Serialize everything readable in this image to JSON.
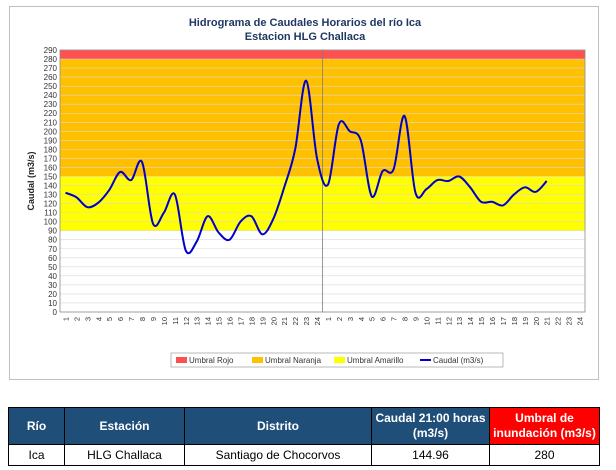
{
  "chart_data": {
    "type": "line",
    "title": "Hidrograma de Caudales Horarios del río Ica",
    "subtitle": "Estacion HLG Challaca",
    "ylabel": "Caudal  (m3/s)",
    "xlabel": "",
    "ylim": [
      0,
      290
    ],
    "yticks": [
      0,
      10,
      20,
      30,
      40,
      50,
      60,
      70,
      80,
      90,
      100,
      110,
      120,
      130,
      140,
      150,
      160,
      170,
      180,
      190,
      200,
      210,
      220,
      230,
      240,
      250,
      260,
      270,
      280,
      290
    ],
    "categories": [
      "1",
      "2",
      "3",
      "4",
      "5",
      "6",
      "7",
      "8",
      "9",
      "10",
      "11",
      "12",
      "13",
      "14",
      "15",
      "16",
      "17",
      "18",
      "19",
      "20",
      "21",
      "22",
      "23",
      "24",
      "1",
      "2",
      "3",
      "4",
      "5",
      "6",
      "7",
      "8",
      "9",
      "10",
      "11",
      "12",
      "13",
      "14",
      "15",
      "16",
      "17",
      "18",
      "19",
      "20",
      "21",
      "22",
      "23",
      "24"
    ],
    "bands": [
      {
        "name": "Umbral Rojo",
        "from": 280,
        "to": 290,
        "color": "#ff5050"
      },
      {
        "name": "Umbral Naranja",
        "from": 150,
        "to": 280,
        "color": "#ffc000"
      },
      {
        "name": "Umbral Amarillo",
        "from": 90,
        "to": 150,
        "color": "#ffff00"
      }
    ],
    "series": [
      {
        "name": "Caudal (m3/s)",
        "color": "#0000cc",
        "values": [
          132,
          127,
          116,
          121,
          135,
          155,
          146,
          166,
          98,
          110,
          130,
          68,
          78,
          106,
          88,
          80,
          100,
          106,
          86,
          103,
          138,
          180,
          256,
          170,
          141,
          208,
          200,
          190,
          128,
          156,
          158,
          217,
          132,
          136,
          146,
          145,
          150,
          138,
          122,
          122,
          118,
          130,
          138,
          133,
          145,
          null,
          null,
          null
        ]
      }
    ],
    "legend_position": "bottom",
    "divider_after_category_index": 23
  },
  "table": {
    "headers": [
      "Río",
      "Estación",
      "Distrito",
      "Caudal 21:00 horas (m3/s)",
      "Umbral de inundación (m3/s)"
    ],
    "row": [
      "Ica",
      "HLG Challaca",
      "Santiago de Chocorvos",
      "144.96",
      "280"
    ]
  }
}
